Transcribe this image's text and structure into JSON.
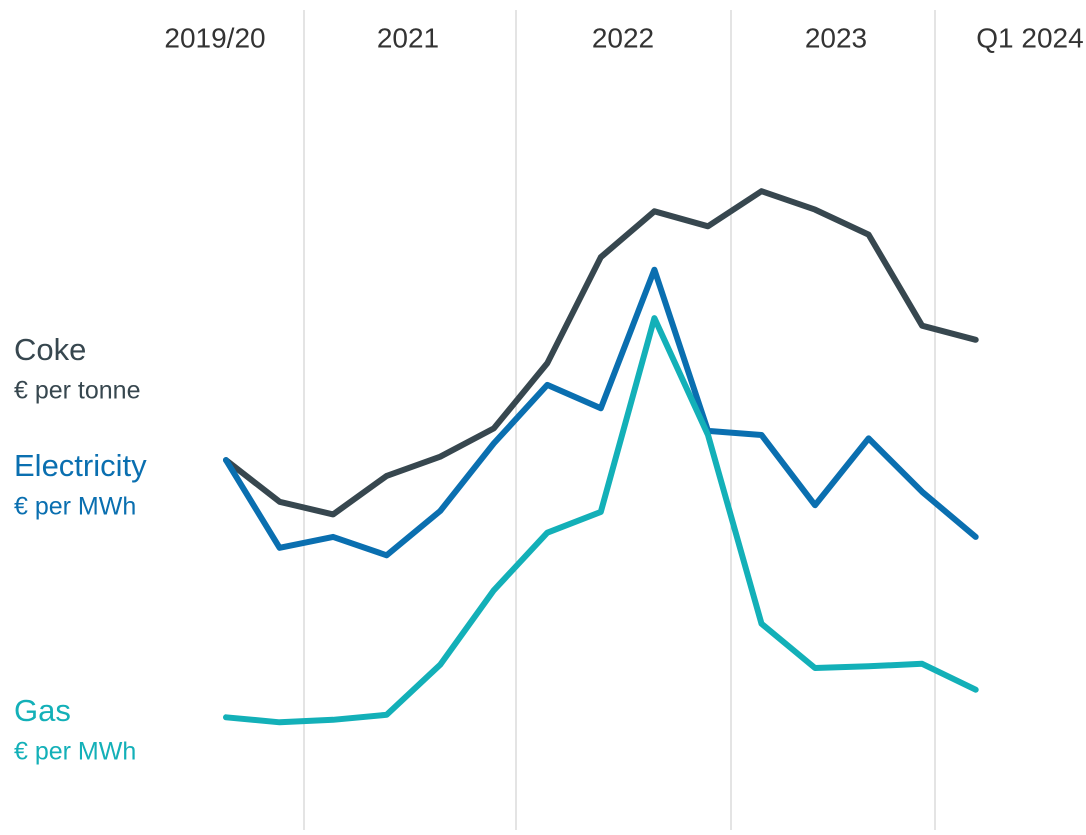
{
  "chart_data": {
    "type": "line",
    "periods": [
      "2019/20",
      "2021",
      "2022",
      "2023",
      "Q1 2024"
    ],
    "ylim": [
      0,
      100
    ],
    "series": [
      {
        "name": "Coke",
        "unit": "€ per tonne",
        "color": "#37474f",
        "values": [
          44.9,
          39.9,
          38.4,
          43.0,
          45.3,
          48.7,
          56.5,
          69.2,
          74.7,
          72.9,
          77.1,
          74.9,
          71.9,
          61.0,
          59.3
        ]
      },
      {
        "name": "Electricity",
        "unit": "€ per MWh",
        "color": "#0a6fb0",
        "values": [
          44.9,
          34.4,
          35.7,
          33.5,
          38.8,
          46.9,
          53.9,
          51.1,
          67.7,
          48.4,
          47.9,
          39.5,
          47.5,
          41.1,
          35.7
        ]
      },
      {
        "name": "Gas",
        "unit": "€ per MWh",
        "color": "#13b0b8",
        "values": [
          14.1,
          13.5,
          13.8,
          14.4,
          20.4,
          29.3,
          36.2,
          38.7,
          61.9,
          47.9,
          25.3,
          20.0,
          20.2,
          20.5,
          17.4
        ]
      }
    ]
  }
}
